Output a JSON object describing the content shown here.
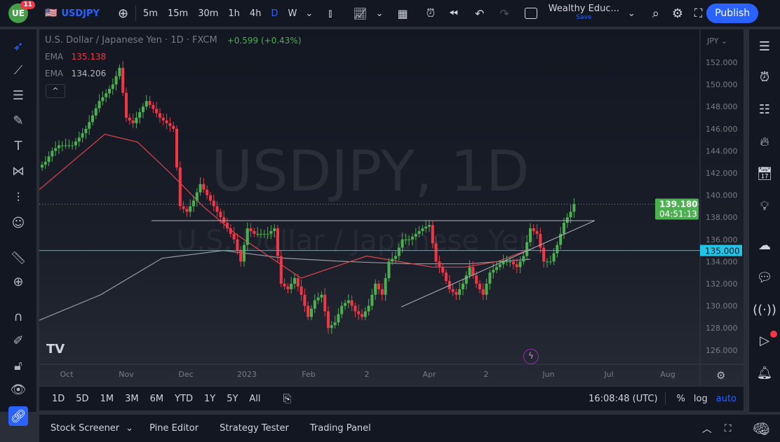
{
  "topbar": {
    "notif_count": "11",
    "symbol": "USDJPY",
    "intervals": [
      "5m",
      "15m",
      "30m",
      "1h",
      "4h",
      "D",
      "W"
    ],
    "active_interval": "D",
    "layout_name": "Wealthy Educ...",
    "save_label": "Save",
    "publish_label": "Publish"
  },
  "legend": {
    "title": "U.S. Dollar / Japanese Yen · 1D · FXCM",
    "change": "+0.599 (+0.43%)",
    "ema1_label": "EMA",
    "ema1_value": "135.138",
    "ema2_label": "EMA",
    "ema2_value": "134.206"
  },
  "watermark": {
    "line1": "USDJPY, 1D",
    "line2": "U.S. Dollar / Japanese Yen"
  },
  "price_axis": {
    "currency": "JPY",
    "ticks": [
      "152.000",
      "150.000",
      "148.000",
      "146.000",
      "144.000",
      "142.000",
      "140.000",
      "138.000",
      "136.000",
      "134.000",
      "132.000",
      "130.000",
      "128.000",
      "126.000"
    ],
    "last_price": "139.180",
    "countdown": "04:51:13",
    "level_label": "135.000"
  },
  "time_axis": {
    "labels": [
      "Oct",
      "Nov",
      "Dec",
      "2023",
      "Feb",
      "2",
      "Apr",
      "2",
      "Jun",
      "Jul",
      "Aug"
    ]
  },
  "rangebar": {
    "ranges": [
      "1D",
      "5D",
      "1M",
      "3M",
      "6M",
      "YTD",
      "1Y",
      "5Y",
      "All"
    ],
    "clock": "16:08:48 (UTC)",
    "pct": "%",
    "log": "log",
    "auto": "auto"
  },
  "bottombar": {
    "tabs": [
      "Stock Screener",
      "Pine Editor",
      "Strategy Tester",
      "Trading Panel"
    ]
  },
  "colors": {
    "up": "#26a69a",
    "green": "#4caf50",
    "down": "#f23645",
    "ema_fast": "#e0434f",
    "ema_slow": "#9598a1",
    "level": "#22c3e6",
    "accent": "#2962ff"
  },
  "chart_data": {
    "type": "candlestick",
    "ylim": [
      125,
      153
    ],
    "closes": [
      143,
      144,
      144.5,
      144.5,
      144.5,
      145.2,
      146,
      147.2,
      148.5,
      149.2,
      150,
      151.5,
      147,
      146.5,
      147.5,
      148.5,
      147.8,
      147,
      146.5,
      146,
      139,
      138.5,
      139.5,
      141,
      140,
      139,
      138,
      137,
      136,
      134,
      137,
      136.5,
      136.5,
      136.5,
      137,
      132,
      131.5,
      132.5,
      131,
      129,
      130.5,
      131,
      128,
      128.5,
      130,
      130.5,
      129.5,
      129,
      130,
      132,
      131,
      134,
      134.5,
      136,
      136,
      136.5,
      137,
      137.3,
      134,
      133,
      131.5,
      131,
      132,
      133.5,
      132,
      131,
      133,
      133.5,
      134,
      134,
      133.5,
      134.5,
      137,
      136.5,
      134,
      134,
      135.5,
      137.5,
      138.5,
      139.18
    ],
    "ema_fast": [
      140.5,
      143,
      145.5,
      144.8,
      142,
      139,
      136.5,
      134.5,
      132.5,
      133.5,
      134.5,
      134,
      133.5,
      133.5,
      134,
      135.138
    ],
    "ema_slow": [
      128.7,
      131,
      134.3,
      135,
      134.3,
      134,
      133.8,
      133.8,
      134.206
    ],
    "horizontal_level": 135.0,
    "resistance": 137.7,
    "last": 139.18
  }
}
